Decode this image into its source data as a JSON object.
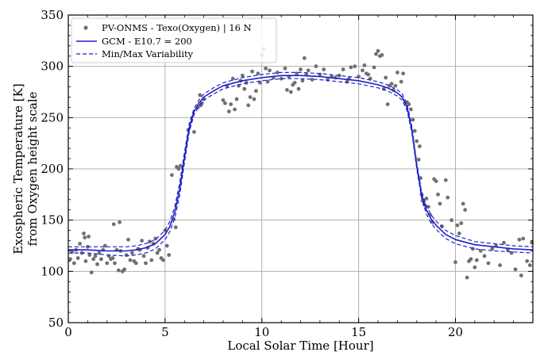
{
  "chart_data": {
    "type": "line",
    "xlabel": "Local Solar Time [Hour]",
    "ylabel": [
      "Exospheric Temperature [K]",
      "from Oxygen height scale"
    ],
    "xlim": [
      0,
      24
    ],
    "ylim": [
      50,
      350
    ],
    "xticks": [
      0,
      5,
      10,
      15,
      20
    ],
    "yticks": [
      50,
      100,
      150,
      200,
      250,
      300,
      350
    ],
    "grid": true,
    "legend_position": "top-left",
    "series": [
      {
        "name": "PV-ONMS - Texo(Oxygen) | 16 N",
        "kind": "scatter",
        "color": "#707070",
        "points": [
          [
            0.1,
            112
          ],
          [
            0.2,
            119
          ],
          [
            0.3,
            108
          ],
          [
            0.4,
            121
          ],
          [
            0.5,
            113
          ],
          [
            0.6,
            127
          ],
          [
            0.7,
            118
          ],
          [
            0.8,
            137
          ],
          [
            0.85,
            133
          ],
          [
            0.9,
            110
          ],
          [
            1.0,
            124
          ],
          [
            1.05,
            134
          ],
          [
            1.1,
            116
          ],
          [
            1.2,
            99
          ],
          [
            1.3,
            112
          ],
          [
            1.4,
            115
          ],
          [
            1.5,
            107
          ],
          [
            1.6,
            118
          ],
          [
            1.7,
            112
          ],
          [
            1.8,
            121
          ],
          [
            1.9,
            125
          ],
          [
            2.0,
            108
          ],
          [
            2.1,
            115
          ],
          [
            2.2,
            112
          ],
          [
            2.3,
            113
          ],
          [
            2.35,
            146
          ],
          [
            2.4,
            108
          ],
          [
            2.5,
            121
          ],
          [
            2.6,
            101
          ],
          [
            2.65,
            148
          ],
          [
            2.7,
            120
          ],
          [
            2.8,
            100
          ],
          [
            2.9,
            102
          ],
          [
            3.0,
            116
          ],
          [
            3.1,
            131
          ],
          [
            3.2,
            111
          ],
          [
            3.3,
            118
          ],
          [
            3.4,
            110
          ],
          [
            3.5,
            108
          ],
          [
            3.6,
            122
          ],
          [
            3.7,
            121
          ],
          [
            3.8,
            130
          ],
          [
            3.9,
            115
          ],
          [
            4.0,
            108
          ],
          [
            4.1,
            123
          ],
          [
            4.2,
            129
          ],
          [
            4.3,
            111
          ],
          [
            4.4,
            127
          ],
          [
            4.5,
            132
          ],
          [
            4.6,
            118
          ],
          [
            4.7,
            121
          ],
          [
            4.8,
            113
          ],
          [
            4.9,
            111
          ],
          [
            5.0,
            140
          ],
          [
            5.1,
            125
          ],
          [
            5.2,
            116
          ],
          [
            5.35,
            194
          ],
          [
            5.45,
            151
          ],
          [
            5.55,
            143
          ],
          [
            5.6,
            202
          ],
          [
            5.7,
            200
          ],
          [
            5.8,
            203
          ],
          [
            6.2,
            238
          ],
          [
            6.5,
            236
          ],
          [
            6.7,
            260
          ],
          [
            6.8,
            272
          ],
          [
            6.85,
            262
          ],
          [
            6.9,
            264
          ],
          [
            7.0,
            268
          ],
          [
            8.0,
            267
          ],
          [
            8.1,
            264
          ],
          [
            8.2,
            281
          ],
          [
            8.3,
            256
          ],
          [
            8.4,
            263
          ],
          [
            8.5,
            288
          ],
          [
            8.6,
            258
          ],
          [
            8.7,
            268
          ],
          [
            8.8,
            281
          ],
          [
            8.9,
            286
          ],
          [
            9.0,
            291
          ],
          [
            9.1,
            278
          ],
          [
            9.2,
            284
          ],
          [
            9.3,
            262
          ],
          [
            9.4,
            270
          ],
          [
            9.5,
            295
          ],
          [
            9.6,
            268
          ],
          [
            9.7,
            276
          ],
          [
            9.8,
            293
          ],
          [
            9.9,
            284
          ],
          [
            10.0,
            311
          ],
          [
            10.1,
            317
          ],
          [
            10.2,
            298
          ],
          [
            10.3,
            285
          ],
          [
            10.4,
            296
          ],
          [
            10.6,
            289
          ],
          [
            10.8,
            294
          ],
          [
            11.0,
            288
          ],
          [
            11.2,
            298
          ],
          [
            11.3,
            277
          ],
          [
            11.4,
            290
          ],
          [
            11.5,
            275
          ],
          [
            11.6,
            282
          ],
          [
            11.7,
            284
          ],
          [
            11.8,
            293
          ],
          [
            11.9,
            278
          ],
          [
            12.0,
            297
          ],
          [
            12.1,
            286
          ],
          [
            12.2,
            308
          ],
          [
            12.3,
            292
          ],
          [
            12.4,
            296
          ],
          [
            12.6,
            287
          ],
          [
            12.8,
            300
          ],
          [
            13.0,
            292
          ],
          [
            13.2,
            297
          ],
          [
            13.4,
            287
          ],
          [
            13.6,
            290
          ],
          [
            13.8,
            289
          ],
          [
            14.0,
            291
          ],
          [
            14.2,
            297
          ],
          [
            14.4,
            285
          ],
          [
            14.5,
            288
          ],
          [
            14.6,
            299
          ],
          [
            14.8,
            300
          ],
          [
            15.0,
            290
          ],
          [
            15.2,
            296
          ],
          [
            15.3,
            301
          ],
          [
            15.4,
            293
          ],
          [
            15.5,
            292
          ],
          [
            15.6,
            288
          ],
          [
            15.8,
            299
          ],
          [
            15.9,
            312
          ],
          [
            16.0,
            315
          ],
          [
            16.1,
            310
          ],
          [
            16.2,
            311
          ],
          [
            16.3,
            278
          ],
          [
            16.4,
            289
          ],
          [
            16.5,
            263
          ],
          [
            16.6,
            281
          ],
          [
            16.7,
            283
          ],
          [
            16.8,
            277
          ],
          [
            16.9,
            281
          ],
          [
            17.0,
            294
          ],
          [
            17.2,
            285
          ],
          [
            17.3,
            293
          ],
          [
            17.5,
            265
          ],
          [
            17.6,
            263
          ],
          [
            17.7,
            258
          ],
          [
            17.8,
            248
          ],
          [
            17.9,
            237
          ],
          [
            18.0,
            227
          ],
          [
            18.1,
            209
          ],
          [
            18.15,
            222
          ],
          [
            18.2,
            191
          ],
          [
            18.25,
            175
          ],
          [
            18.3,
            169
          ],
          [
            18.4,
            165
          ],
          [
            18.5,
            171
          ],
          [
            18.6,
            163
          ],
          [
            18.7,
            155
          ],
          [
            18.8,
            148
          ],
          [
            18.9,
            190
          ],
          [
            19.0,
            188
          ],
          [
            19.1,
            175
          ],
          [
            19.2,
            166
          ],
          [
            19.3,
            144
          ],
          [
            19.5,
            189
          ],
          [
            19.6,
            172
          ],
          [
            19.8,
            150
          ],
          [
            20.0,
            109
          ],
          [
            20.1,
            145
          ],
          [
            20.2,
            137
          ],
          [
            20.3,
            147
          ],
          [
            20.4,
            166
          ],
          [
            20.5,
            160
          ],
          [
            20.6,
            94
          ],
          [
            20.7,
            110
          ],
          [
            20.8,
            112
          ],
          [
            20.9,
            122
          ],
          [
            21.0,
            104
          ],
          [
            21.1,
            111
          ],
          [
            21.3,
            120
          ],
          [
            21.5,
            115
          ],
          [
            21.7,
            108
          ],
          [
            21.9,
            122
          ],
          [
            22.1,
            125
          ],
          [
            22.3,
            106
          ],
          [
            22.5,
            128
          ],
          [
            22.7,
            121
          ],
          [
            22.9,
            118
          ],
          [
            23.1,
            102
          ],
          [
            23.3,
            131
          ],
          [
            23.4,
            96
          ],
          [
            23.5,
            132
          ],
          [
            23.7,
            110
          ],
          [
            23.85,
            106
          ],
          [
            23.95,
            128
          ]
        ]
      },
      {
        "name": "GCM - E10.7 = 200",
        "kind": "line",
        "color": "#1f1fc8",
        "dash": "solid",
        "x": [
          0,
          1,
          2,
          3,
          3.5,
          4,
          4.5,
          5,
          5.25,
          5.5,
          5.75,
          6,
          6.25,
          6.5,
          6.75,
          7,
          7.5,
          8,
          9,
          10,
          11,
          12,
          13,
          14,
          15,
          16,
          16.5,
          17,
          17.25,
          17.5,
          17.75,
          18,
          18.25,
          18.5,
          18.75,
          19,
          19.5,
          20,
          21,
          22,
          23,
          24
        ],
        "y": [
          121,
          121,
          120,
          120,
          121,
          123,
          127,
          136,
          144,
          158,
          180,
          211,
          240,
          256,
          264,
          270,
          276,
          281,
          286,
          289,
          291,
          291,
          290,
          288,
          286,
          282,
          279,
          274,
          270,
          260,
          238,
          203,
          175,
          160,
          151,
          145,
          136,
          131,
          126,
          124,
          122,
          121
        ]
      },
      {
        "name": "Min/Max Variability",
        "kind": "line",
        "color": "#1f1fc8",
        "dash": "dashed",
        "x": [
          0,
          1,
          2,
          3,
          3.5,
          4,
          4.5,
          5,
          5.25,
          5.5,
          5.75,
          6,
          6.25,
          6.5,
          6.75,
          7,
          7.5,
          8,
          9,
          10,
          11,
          12,
          13,
          14,
          15,
          16,
          16.5,
          17,
          17.25,
          17.5,
          17.75,
          18,
          18.25,
          18.5,
          18.75,
          19,
          19.5,
          20,
          21,
          22,
          23,
          24
        ],
        "y": [
          124,
          124,
          124,
          124,
          125,
          127,
          131,
          140,
          149,
          163,
          186,
          216,
          244,
          259,
          267,
          273,
          279,
          284,
          289,
          292,
          294,
          294,
          293,
          291,
          289,
          285,
          282,
          277,
          273,
          263,
          241,
          206,
          178,
          164,
          155,
          149,
          140,
          135,
          129,
          127,
          125,
          124
        ]
      },
      {
        "name": "",
        "kind": "line",
        "color": "#1f1fc8",
        "dash": "dashed",
        "x": [
          0,
          1,
          2,
          3,
          3.5,
          4,
          4.5,
          5,
          5.25,
          5.5,
          5.75,
          6,
          6.25,
          6.5,
          6.75,
          7,
          7.5,
          8,
          9,
          10,
          11,
          12,
          13,
          14,
          15,
          16,
          16.5,
          17,
          17.25,
          17.5,
          17.75,
          18,
          18.25,
          18.5,
          18.75,
          19,
          19.5,
          20,
          21,
          22,
          23,
          24
        ],
        "y": [
          118,
          118,
          116,
          115,
          116,
          118,
          122,
          131,
          139,
          152,
          174,
          206,
          236,
          253,
          261,
          267,
          273,
          278,
          283,
          286,
          288,
          288,
          287,
          285,
          283,
          279,
          276,
          271,
          267,
          257,
          235,
          200,
          172,
          156,
          147,
          141,
          132,
          127,
          122,
          120,
          119,
          118
        ]
      }
    ]
  }
}
